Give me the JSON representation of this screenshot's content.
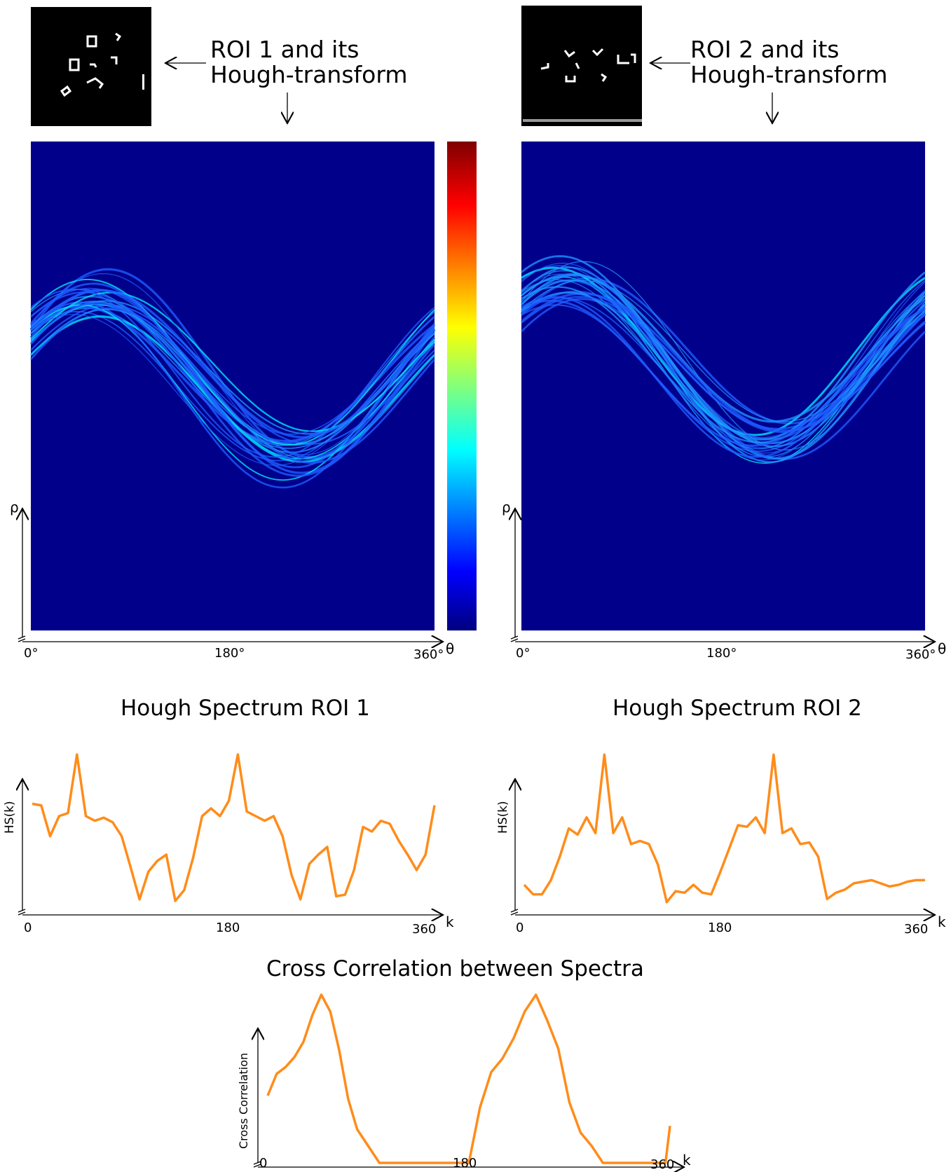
{
  "roi_panels": [
    {
      "caption_line1": "ROI 1 and its",
      "caption_line2": "Hough-transform",
      "x_ticks": [
        "0°",
        "180°",
        "360°"
      ],
      "x_axis_label": "θ",
      "y_axis_label": "ρ"
    },
    {
      "caption_line1": "ROI 2 and its",
      "caption_line2": "Hough-transform",
      "x_ticks": [
        "0°",
        "180°",
        "360°"
      ],
      "x_axis_label": "θ",
      "y_axis_label": "ρ"
    }
  ],
  "colors": {
    "hough_background": "#00008b",
    "curve_blue": "#1e6bff",
    "spectrum_line": "#ff8c1a",
    "colorbar_stops": [
      "#00007f",
      "#0000ff",
      "#00ffff",
      "#ffff00",
      "#ff0000",
      "#7f0000"
    ]
  },
  "chart_data": [
    {
      "type": "line",
      "title": "Hough Spectrum ROI 1",
      "xlabel": "k",
      "ylabel": "HS(k)",
      "x_ticks": [
        "0",
        "180",
        "360"
      ],
      "xlim": [
        0,
        360
      ],
      "ylim": [
        0,
        1
      ],
      "x": [
        0,
        8,
        16,
        24,
        32,
        40,
        48,
        56,
        64,
        72,
        80,
        88,
        96,
        104,
        112,
        120,
        128,
        136,
        144,
        152,
        160,
        168,
        176,
        184,
        192,
        200,
        208,
        216,
        224,
        232,
        240,
        248,
        256,
        264,
        272,
        280,
        288,
        296,
        304,
        312,
        320,
        328,
        336,
        344,
        352,
        360
      ],
      "values": [
        0.63,
        0.62,
        0.42,
        0.55,
        0.57,
        0.95,
        0.55,
        0.52,
        0.54,
        0.51,
        0.42,
        0.22,
        0.01,
        0.19,
        0.26,
        0.3,
        0.0,
        0.07,
        0.28,
        0.55,
        0.6,
        0.55,
        0.65,
        0.95,
        0.58,
        0.55,
        0.52,
        0.55,
        0.42,
        0.17,
        0.01,
        0.24,
        0.3,
        0.35,
        0.03,
        0.04,
        0.2,
        0.48,
        0.45,
        0.52,
        0.5,
        0.39,
        0.3,
        0.2,
        0.3,
        0.62
      ]
    },
    {
      "type": "line",
      "title": "Hough Spectrum ROI 2",
      "xlabel": "k",
      "ylabel": "HS(k)",
      "x_ticks": [
        "0",
        "180",
        "360"
      ],
      "xlim": [
        0,
        360
      ],
      "ylim": [
        0,
        1
      ],
      "x": [
        0,
        8,
        16,
        24,
        32,
        40,
        48,
        56,
        64,
        72,
        80,
        88,
        96,
        104,
        112,
        120,
        128,
        136,
        144,
        152,
        160,
        168,
        176,
        184,
        192,
        200,
        208,
        216,
        224,
        232,
        240,
        248,
        256,
        264,
        272,
        280,
        288,
        296,
        304,
        312,
        320,
        328,
        336,
        344,
        352,
        360
      ],
      "values": [
        0.12,
        0.06,
        0.06,
        0.15,
        0.3,
        0.48,
        0.44,
        0.55,
        0.45,
        0.95,
        0.45,
        0.55,
        0.38,
        0.4,
        0.38,
        0.25,
        0.01,
        0.08,
        0.07,
        0.12,
        0.07,
        0.06,
        0.2,
        0.35,
        0.5,
        0.49,
        0.55,
        0.45,
        0.95,
        0.45,
        0.48,
        0.38,
        0.39,
        0.3,
        0.03,
        0.07,
        0.09,
        0.13,
        0.14,
        0.15,
        0.13,
        0.11,
        0.12,
        0.14,
        0.15,
        0.15
      ]
    },
    {
      "type": "line",
      "title": "Cross Correlation between Spectra",
      "xlabel": "k",
      "ylabel": "Cross Correlation",
      "x_ticks": [
        "0",
        "180",
        "360"
      ],
      "xlim": [
        0,
        360
      ],
      "ylim": [
        0,
        1
      ],
      "x": [
        0,
        8,
        16,
        24,
        32,
        40,
        48,
        56,
        64,
        72,
        80,
        90,
        100,
        110,
        120,
        128,
        136,
        144,
        152,
        160,
        170,
        180,
        190,
        200,
        210,
        220,
        230,
        240,
        250,
        260,
        270,
        280,
        290,
        300,
        310,
        320,
        330,
        340,
        350,
        356,
        360
      ],
      "values": [
        0.4,
        0.53,
        0.57,
        0.63,
        0.72,
        0.88,
        1.0,
        0.9,
        0.67,
        0.38,
        0.2,
        0.1,
        0.0,
        0.0,
        0.0,
        0.0,
        0.0,
        0.0,
        0.0,
        0.0,
        0.0,
        0.0,
        0.33,
        0.54,
        0.62,
        0.74,
        0.9,
        1.0,
        0.85,
        0.68,
        0.36,
        0.18,
        0.1,
        0.0,
        0.0,
        0.0,
        0.0,
        0.0,
        0.0,
        0.0,
        0.22
      ]
    }
  ]
}
